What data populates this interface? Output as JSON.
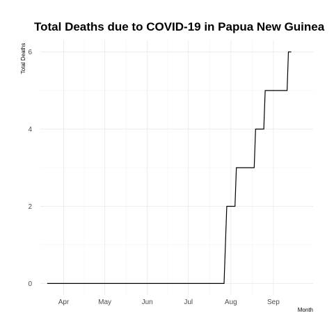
{
  "chart_data": {
    "type": "line",
    "title": "Total Deaths due to COVID-19 in Papua New Guinea",
    "xlabel": "Month",
    "ylabel": "Total Deaths",
    "x_ticks": [
      {
        "date": "2020-04-01",
        "label": "Apr"
      },
      {
        "date": "2020-05-01",
        "label": "May"
      },
      {
        "date": "2020-06-01",
        "label": "Jun"
      },
      {
        "date": "2020-07-01",
        "label": "Jul"
      },
      {
        "date": "2020-08-01",
        "label": "Aug"
      },
      {
        "date": "2020-09-01",
        "label": "Sep"
      }
    ],
    "y_ticks": [
      0,
      2,
      4,
      6
    ],
    "xlim": [
      "2020-03-15",
      "2020-09-30"
    ],
    "ylim": [
      -0.3,
      6.3
    ],
    "grid": true,
    "line_color": "#000000",
    "series": [
      {
        "x": [
          "2020-03-20",
          "2020-07-27",
          "2020-07-29",
          "2020-08-04",
          "2020-08-05",
          "2020-08-18",
          "2020-08-19",
          "2020-08-25",
          "2020-08-26",
          "2020-09-11",
          "2020-09-12",
          "2020-09-14"
        ],
        "values": [
          0,
          0,
          2,
          2,
          3,
          3,
          4,
          4,
          5,
          5,
          6,
          6
        ]
      }
    ]
  }
}
